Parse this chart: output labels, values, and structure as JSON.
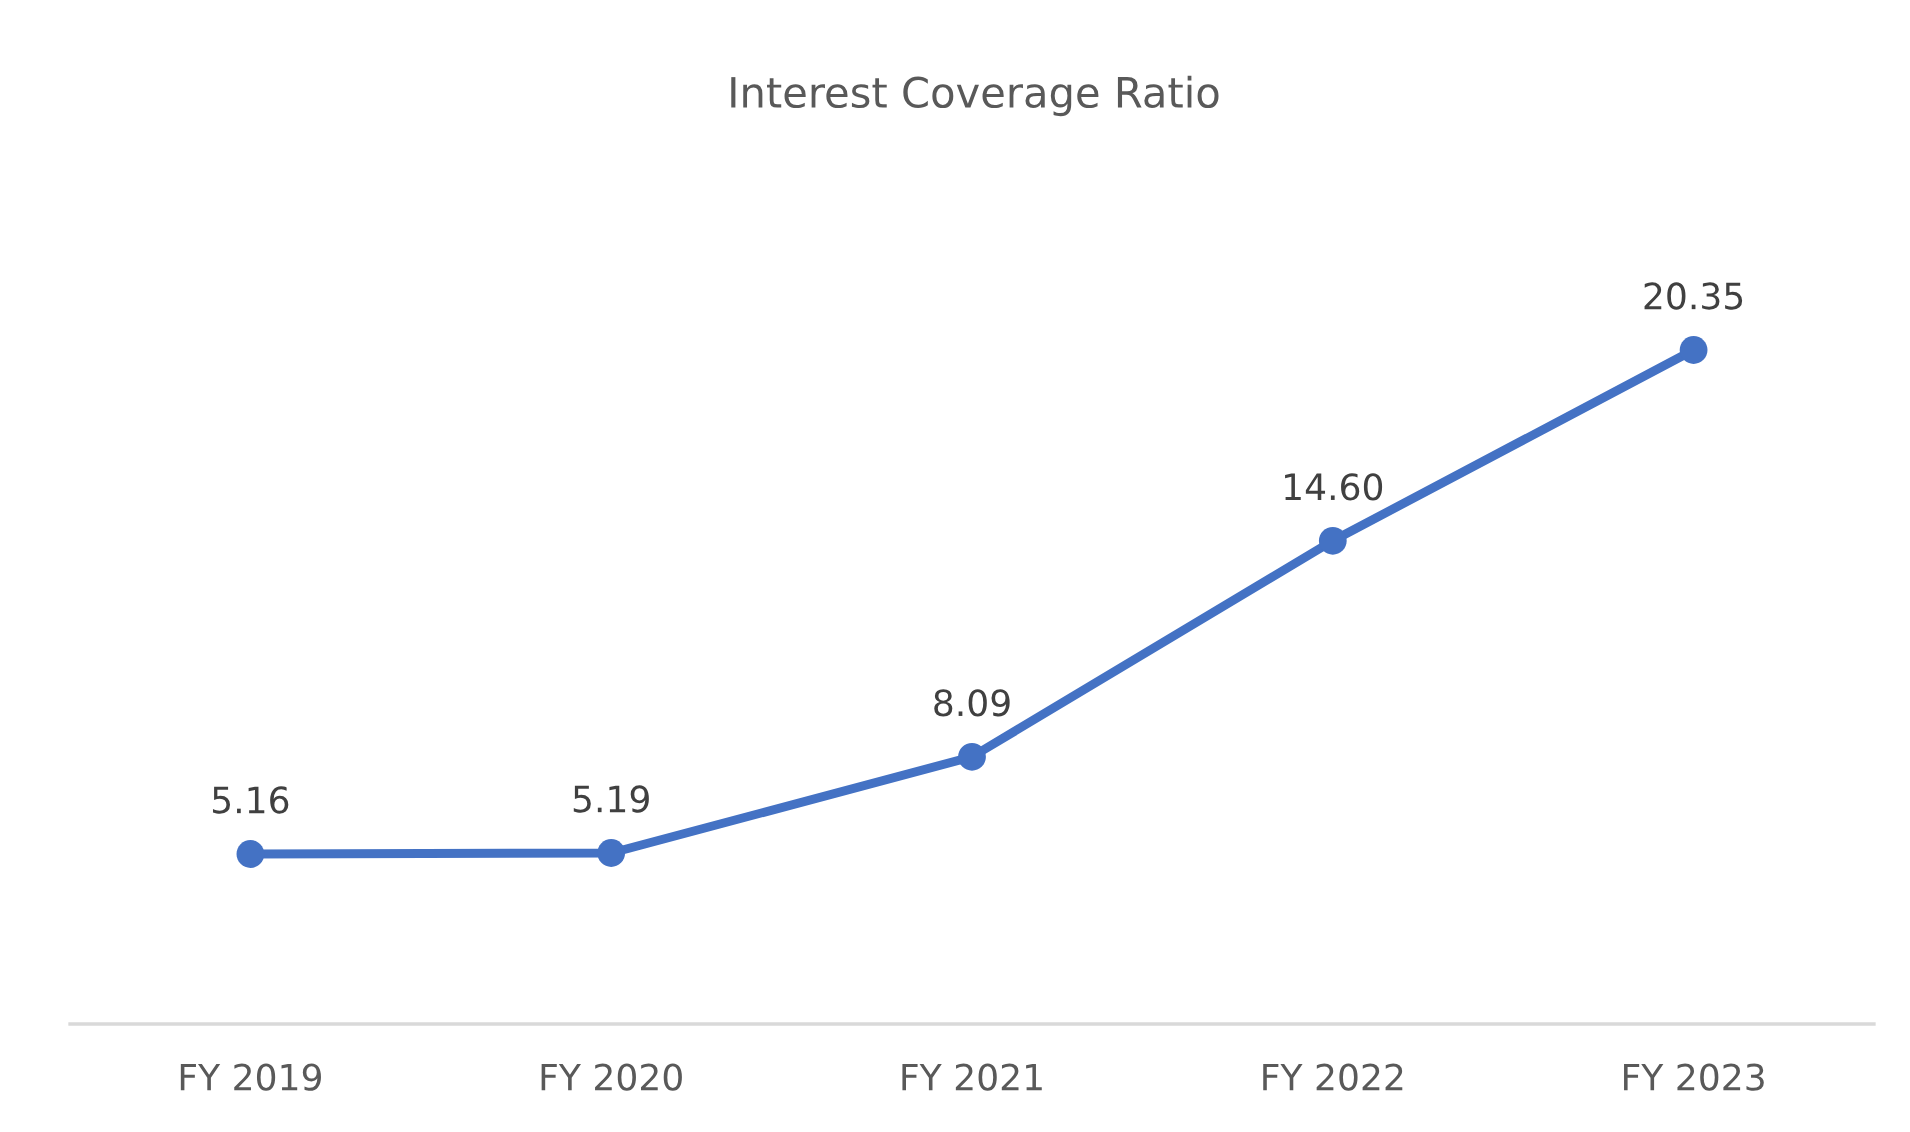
{
  "chart_data": {
    "type": "line",
    "title": "Interest Coverage Ratio",
    "categories": [
      "FY 2019",
      "FY 2020",
      "FY 2021",
      "FY 2022",
      "FY 2023"
    ],
    "values": [
      5.16,
      5.19,
      8.09,
      14.6,
      20.35
    ],
    "value_labels": [
      "5.16",
      "5.19",
      "8.09",
      "14.60",
      "20.35"
    ],
    "color": "#4472c4",
    "marker": "circle",
    "line_style": "solid",
    "tick_labels": "x"
  }
}
